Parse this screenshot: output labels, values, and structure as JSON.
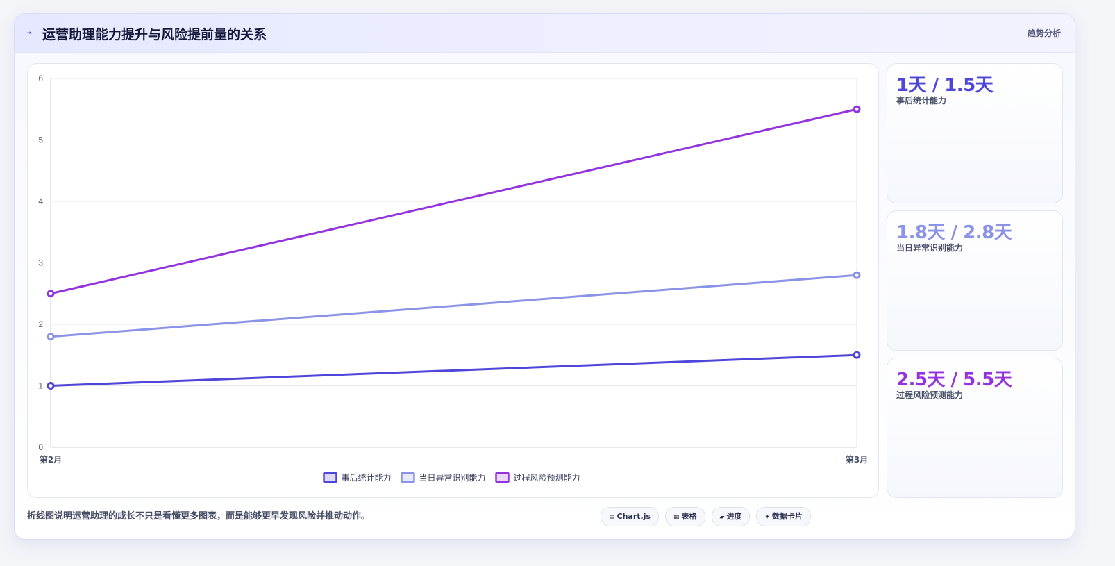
{
  "header": {
    "title": "运营助理能力提升与风险提前量的关系",
    "title_icon": "lightning-icon",
    "right_label": "趋势分析"
  },
  "chart_data": {
    "type": "line",
    "categories": [
      "第2月",
      "第3月"
    ],
    "ylim": [
      0,
      6
    ],
    "yticks": [
      0,
      1,
      2,
      3,
      4,
      5,
      6
    ],
    "grid": true,
    "legend_position": "bottom",
    "series": [
      {
        "name": "事后统计能力",
        "values": [
          1,
          1.5
        ],
        "color": "#4f46d9"
      },
      {
        "name": "当日异常识别能力",
        "values": [
          1.8,
          2.8
        ],
        "color": "#8b93e6"
      },
      {
        "name": "过程风险预测能力",
        "values": [
          2.5,
          5.5
        ],
        "color": "#9333dd"
      }
    ]
  },
  "stats": [
    {
      "value": "1天 / 1.5天",
      "label": "事后统计能力",
      "color": "#4f46d9"
    },
    {
      "value": "1.8天 / 2.8天",
      "label": "当日异常识别能力",
      "color": "#8b93e6"
    },
    {
      "value": "2.5天 / 5.5天",
      "label": "过程风险预测能力",
      "color": "#9333dd"
    }
  ],
  "footer": {
    "note": "折线图说明运营助理的成长不只是看懂更多图表，而是能够更早发现风险并推动动作。",
    "chips": [
      {
        "icon": "chart-icon",
        "label": "Chart.js"
      },
      {
        "icon": "table-icon",
        "label": "表格"
      },
      {
        "icon": "progress-icon",
        "label": "进度"
      },
      {
        "icon": "sparkle-icon",
        "label": "数据卡片"
      }
    ]
  }
}
